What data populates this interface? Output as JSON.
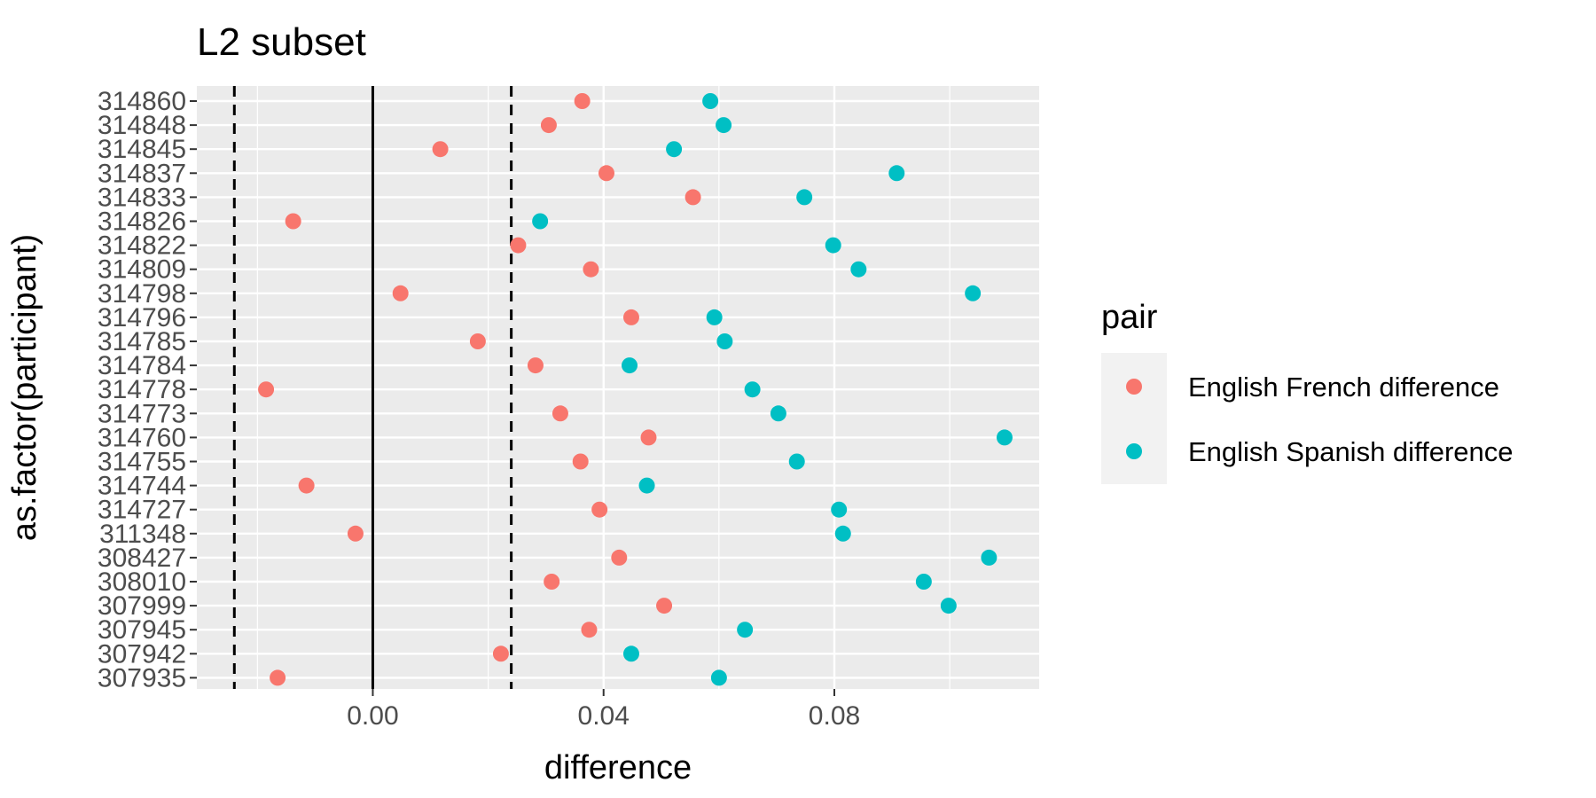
{
  "chart_data": {
    "type": "scatter",
    "title": "L2 subset",
    "xlabel": "difference",
    "ylabel": "as.factor(participant)",
    "xlim": [
      -0.0305,
      0.1155
    ],
    "x_ticks": [
      {
        "value": 0.0,
        "label": "0.00"
      },
      {
        "value": 0.04,
        "label": "0.04"
      },
      {
        "value": 0.08,
        "label": "0.08"
      }
    ],
    "categories": [
      "307935",
      "307942",
      "307945",
      "307999",
      "308010",
      "308427",
      "311348",
      "314727",
      "314744",
      "314755",
      "314760",
      "314773",
      "314778",
      "314784",
      "314785",
      "314796",
      "314798",
      "314809",
      "314822",
      "314826",
      "314833",
      "314837",
      "314845",
      "314848",
      "314860"
    ],
    "series": [
      {
        "name": "English French difference",
        "color": "#F8766D",
        "values": [
          -0.0165,
          0.0222,
          0.0375,
          0.0505,
          0.031,
          0.0427,
          -0.003,
          0.0393,
          -0.0115,
          0.036,
          0.0478,
          0.0325,
          -0.0185,
          0.0282,
          0.0182,
          0.0448,
          0.0048,
          0.0378,
          0.0252,
          -0.0138,
          0.0555,
          0.0405,
          0.0117,
          0.0305,
          0.0363
        ]
      },
      {
        "name": "English Spanish difference",
        "color": "#00BFC4",
        "values": [
          0.06,
          0.0448,
          0.0645,
          0.0998,
          0.0955,
          0.1068,
          0.0815,
          0.0808,
          0.0475,
          0.0735,
          0.1095,
          0.0703,
          0.0658,
          0.0445,
          0.061,
          0.0592,
          0.104,
          0.0842,
          0.0798,
          0.029,
          0.0748,
          0.0908,
          0.0522,
          0.0608,
          0.0585
        ]
      }
    ],
    "reference_lines": [
      {
        "value": 0.0,
        "style": "solid"
      },
      {
        "value": -0.024,
        "style": "dashed"
      },
      {
        "value": 0.024,
        "style": "dashed"
      }
    ],
    "grid": true,
    "legend": {
      "title": "pair",
      "position": "right"
    }
  }
}
